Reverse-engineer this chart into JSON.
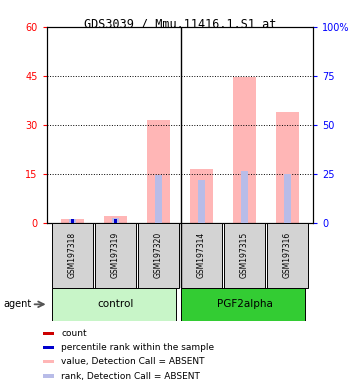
{
  "title": "GDS3039 / Mmu.11416.1.S1_at",
  "samples": [
    "GSM197318",
    "GSM197319",
    "GSM197320",
    "GSM197314",
    "GSM197315",
    "GSM197316"
  ],
  "ylim_left": [
    0,
    60
  ],
  "ylim_right": [
    0,
    100
  ],
  "yticks_left": [
    0,
    15,
    30,
    45,
    60
  ],
  "yticks_right": [
    0,
    25,
    50,
    75,
    100
  ],
  "ytick_labels_left": [
    "0",
    "15",
    "30",
    "45",
    "60"
  ],
  "ytick_labels_right": [
    "0",
    "25",
    "50",
    "75",
    "100%"
  ],
  "value_bars": [
    1.2,
    2.1,
    31.5,
    16.5,
    44.5,
    34.0
  ],
  "rank_bars": [
    1.8,
    2.4,
    24.5,
    22.0,
    26.5,
    25.0
  ],
  "count_bars": [
    1.2,
    0.9,
    0.2,
    0.2,
    0.5,
    0.3
  ],
  "prank_bars": [
    1.8,
    1.8,
    0.0,
    0.0,
    0.0,
    0.0
  ],
  "value_color": "#ffb6b6",
  "rank_color": "#b8bce8",
  "count_color": "#cc0000",
  "prank_color": "#0000cc",
  "legend_items": [
    {
      "label": "count",
      "color": "#cc0000"
    },
    {
      "label": "percentile rank within the sample",
      "color": "#0000cc"
    },
    {
      "label": "value, Detection Call = ABSENT",
      "color": "#ffb6b6"
    },
    {
      "label": "rank, Detection Call = ABSENT",
      "color": "#b8bce8"
    }
  ],
  "bar_width": 0.55,
  "agent_label": "agent",
  "ctrl_color": "#c8f5c8",
  "pgf_color": "#33cc33"
}
